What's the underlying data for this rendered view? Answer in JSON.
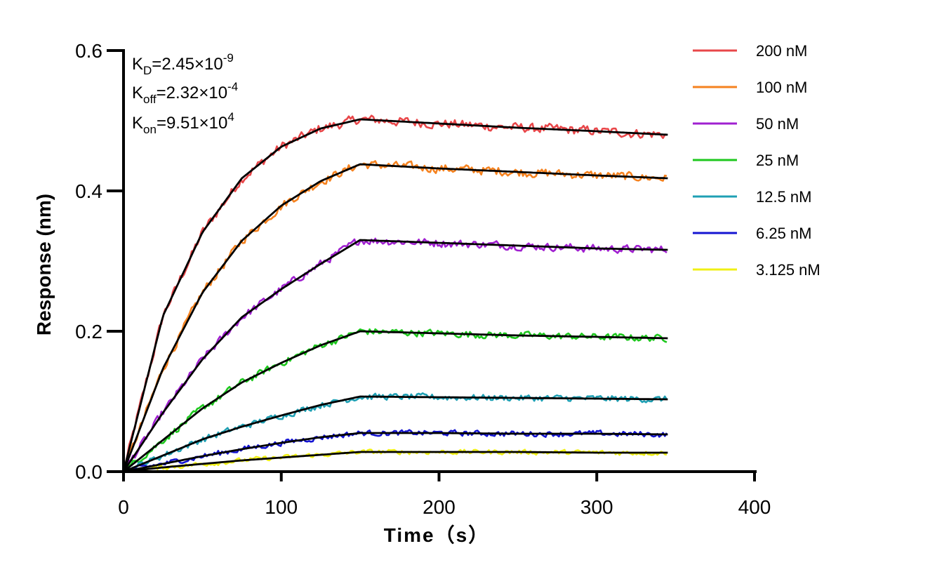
{
  "chart_data": {
    "type": "line",
    "xlabel": "Time（s）",
    "ylabel": "Response (nm)",
    "xlim": [
      0,
      400
    ],
    "ylim": [
      0,
      0.6
    ],
    "x_ticks": [
      "0",
      "100",
      "200",
      "300",
      "400"
    ],
    "y_ticks": [
      "0.0",
      "0.2",
      "0.4",
      "0.6"
    ],
    "x_tick_values": [
      0,
      100,
      200,
      300,
      400
    ],
    "y_tick_values": [
      0,
      0.2,
      0.4,
      0.6
    ],
    "grid": false,
    "legend_position": "top-right",
    "annotations": {
      "kd": {
        "base": "K",
        "sub": "D",
        "mid": "=2.45×10",
        "sup": "-9"
      },
      "koff": {
        "base": "K",
        "sub": "off",
        "mid": "=2.32×10",
        "sup": "-4"
      },
      "kon": {
        "base": "K",
        "sub": "on",
        "mid": "=9.51×10",
        "sup": "4"
      }
    },
    "association_end": 150,
    "time_end": 345,
    "fit_color": "#000000",
    "series": [
      {
        "name": "200 nM",
        "color": "#e8474a",
        "x": [
          0,
          25,
          50,
          75,
          100,
          125,
          150,
          200,
          250,
          300,
          345
        ],
        "y": [
          0,
          0.222,
          0.341,
          0.418,
          0.463,
          0.489,
          0.502,
          0.496,
          0.49,
          0.485,
          0.48
        ]
      },
      {
        "name": "100 nM",
        "color": "#f5821f",
        "x": [
          0,
          25,
          50,
          75,
          100,
          125,
          150,
          200,
          250,
          300,
          345
        ],
        "y": [
          0,
          0.147,
          0.255,
          0.329,
          0.379,
          0.414,
          0.438,
          0.432,
          0.427,
          0.422,
          0.418
        ]
      },
      {
        "name": "50 nM",
        "color": "#a020d0",
        "x": [
          0,
          25,
          50,
          75,
          100,
          125,
          150,
          200,
          250,
          300,
          345
        ],
        "y": [
          0,
          0.084,
          0.16,
          0.22,
          0.26,
          0.296,
          0.33,
          0.326,
          0.322,
          0.318,
          0.316
        ]
      },
      {
        "name": "25 nM",
        "color": "#1ec81e",
        "x": [
          0,
          25,
          50,
          75,
          100,
          125,
          150,
          200,
          250,
          300,
          345
        ],
        "y": [
          0,
          0.045,
          0.09,
          0.127,
          0.155,
          0.18,
          0.2,
          0.197,
          0.194,
          0.192,
          0.19
        ]
      },
      {
        "name": "12.5 nM",
        "color": "#1fa0b4",
        "x": [
          0,
          25,
          50,
          75,
          100,
          125,
          150,
          200,
          250,
          300,
          345
        ],
        "y": [
          0,
          0.023,
          0.046,
          0.064,
          0.08,
          0.095,
          0.107,
          0.106,
          0.105,
          0.104,
          0.103
        ]
      },
      {
        "name": "6.25 nM",
        "color": "#1414d2",
        "x": [
          0,
          25,
          50,
          75,
          100,
          125,
          150,
          200,
          250,
          300,
          345
        ],
        "y": [
          0,
          0.011,
          0.022,
          0.032,
          0.041,
          0.049,
          0.055,
          0.055,
          0.054,
          0.054,
          0.053
        ]
      },
      {
        "name": "3.125 nM",
        "color": "#f0f014",
        "x": [
          0,
          25,
          50,
          75,
          100,
          125,
          150,
          200,
          250,
          300,
          345
        ],
        "y": [
          0,
          0.006,
          0.011,
          0.016,
          0.02,
          0.024,
          0.028,
          0.028,
          0.028,
          0.027,
          0.027
        ]
      }
    ]
  }
}
